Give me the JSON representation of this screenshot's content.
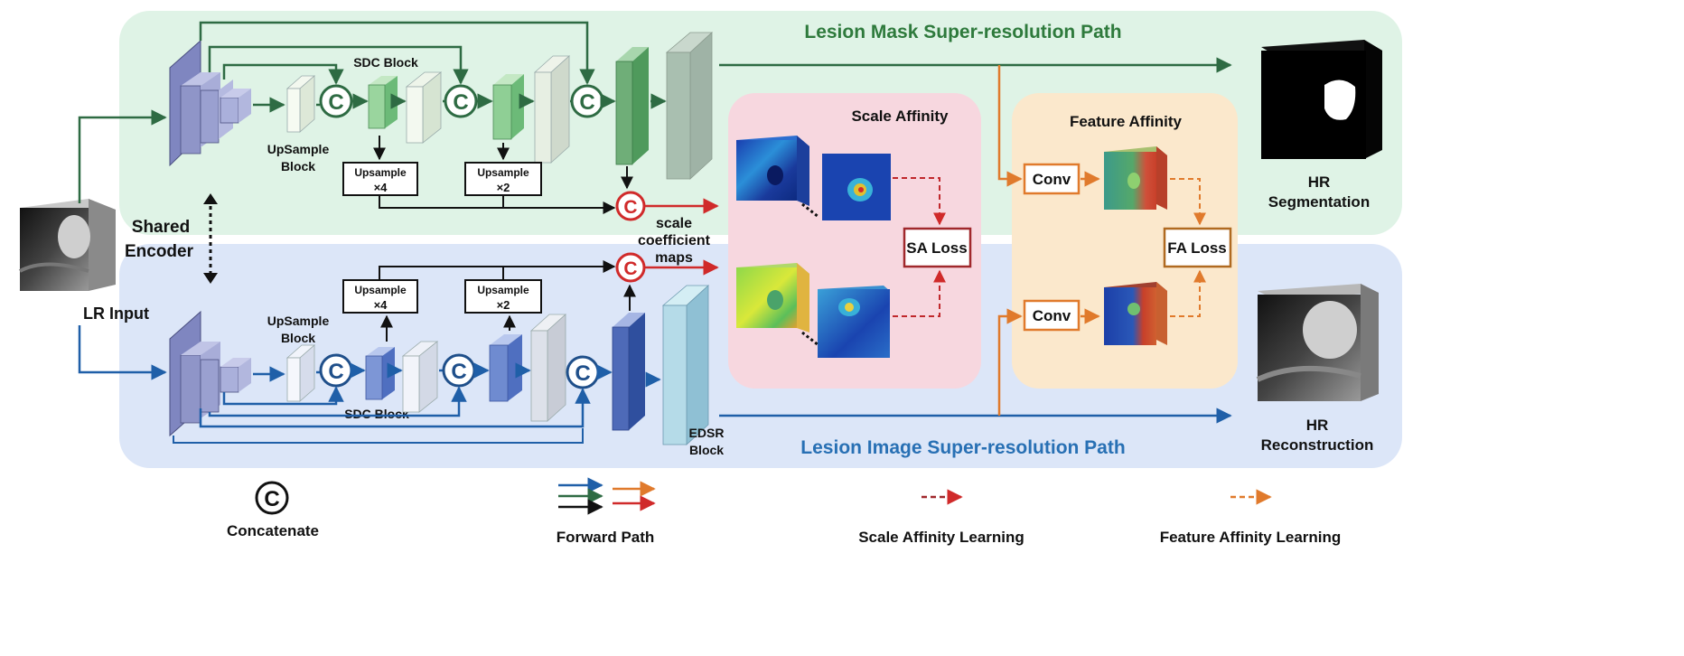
{
  "paths": {
    "mask_title": "Lesion Mask Super-resolution Path",
    "image_title": "Lesion Image Super-resolution Path"
  },
  "inputs": {
    "lr_input": "LR Input",
    "shared_encoder_line1": "Shared",
    "shared_encoder_line2": "Encoder"
  },
  "blocks": {
    "upsample_block_line1": "UpSample",
    "upsample_block_line2": "Block",
    "sdc_block": "SDC Block",
    "upsample_x4_line1": "Upsample",
    "upsample_x4_line2": "×4",
    "upsample_x2_line1": "Upsample",
    "upsample_x2_line2": "×2",
    "edsr_line1": "EDSR",
    "edsr_line2": "Block",
    "concat_symbol": "C"
  },
  "scale_coeff": {
    "line1": "scale",
    "line2": "coefficient",
    "line3": "maps"
  },
  "affinity": {
    "scale_title": "Scale Affinity",
    "feature_title": "Feature Affinity",
    "sa_loss": "SA Loss",
    "fa_loss": "FA Loss",
    "conv": "Conv"
  },
  "outputs": {
    "hr_seg_line1": "HR",
    "hr_seg_line2": "Segmentation",
    "hr_rec_line1": "HR",
    "hr_rec_line2": "Reconstruction"
  },
  "legend": {
    "concatenate": "Concatenate",
    "forward_path": "Forward Path",
    "scale_affinity_learning": "Scale Affinity Learning",
    "feature_affinity_learning": "Feature Affinity Learning"
  },
  "colors": {
    "mask_panel": "#dff3e6",
    "image_panel": "#dce6f8",
    "scale_panel": "#f7d7df",
    "feature_panel": "#fbe8cc",
    "green_arrow": "#2e6b43",
    "blue_arrow": "#1f5fa8",
    "orange_arrow": "#e07a2c",
    "red": "#d02a2a",
    "dark_red": "#a0282c",
    "title_green": "#2e7a3c",
    "title_blue": "#2870b4"
  }
}
